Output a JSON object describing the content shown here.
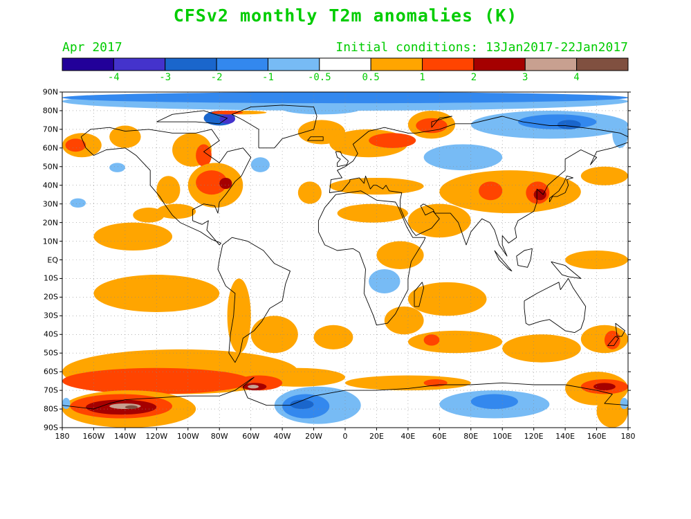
{
  "title": "CFSv2 monthly T2m anomalies (K)",
  "subtitle_left": "Apr 2017",
  "subtitle_right": "Initial conditions: 13Jan2017-22Jan2017",
  "colorbar": {
    "colors": [
      "#220099",
      "#4433cc",
      "#1a66cc",
      "#3388ee",
      "#77bbf5",
      "#ffffff",
      "#ffa500",
      "#ff4400",
      "#a50000",
      "#c8a090",
      "#805040"
    ],
    "labels": [
      "-4",
      "-3",
      "-2",
      "-1",
      "-0.5",
      "0.5",
      "1",
      "2",
      "3",
      "4"
    ]
  },
  "axes": {
    "lat_labels": [
      "90N",
      "80N",
      "70N",
      "60N",
      "50N",
      "40N",
      "30N",
      "20N",
      "10N",
      "EQ",
      "10S",
      "20S",
      "30S",
      "40S",
      "50S",
      "60S",
      "70S",
      "80S",
      "90S"
    ],
    "lon_labels": [
      "180",
      "160W",
      "140W",
      "120W",
      "100W",
      "80W",
      "60W",
      "40W",
      "20W",
      "0",
      "20E",
      "40E",
      "60E",
      "80E",
      "100E",
      "120E",
      "140E",
      "160E",
      "180"
    ]
  },
  "map": {
    "projection": "equirectangular",
    "lon_range": [
      -180,
      180
    ],
    "lat_range": [
      -90,
      90
    ],
    "gridlines": "dotted every 10 degrees"
  }
}
